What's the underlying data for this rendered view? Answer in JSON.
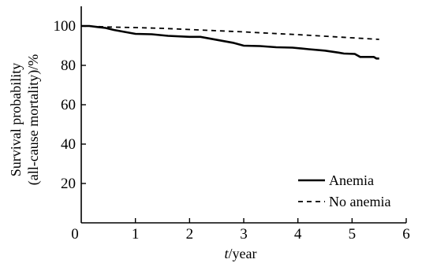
{
  "chart_data": {
    "type": "line",
    "xlabel_italic": "t",
    "xlabel_rest": "/year",
    "ylabel_line1": "Survival probability",
    "ylabel_line2": "(all-cause mortality)/%",
    "xlim": [
      0,
      6
    ],
    "ylim": [
      0,
      110
    ],
    "x_ticks": [
      0,
      1,
      2,
      3,
      4,
      5,
      6
    ],
    "x_tick_labels": [
      "0",
      "1",
      "2",
      "3",
      "4",
      "5",
      "6"
    ],
    "y_ticks": [
      20,
      40,
      60,
      80,
      100
    ],
    "y_tick_labels": [
      "20",
      "40",
      "60",
      "80",
      "100"
    ],
    "grid": false,
    "legend_position": "bottom-right",
    "series": [
      {
        "name": "Anemia",
        "style": "solid",
        "color": "#000000",
        "points": [
          [
            0,
            100
          ],
          [
            0.15,
            100
          ],
          [
            0.3,
            99.5
          ],
          [
            0.45,
            99
          ],
          [
            0.6,
            98
          ],
          [
            0.8,
            97
          ],
          [
            1.0,
            96
          ],
          [
            1.3,
            95.8
          ],
          [
            1.6,
            95
          ],
          [
            2.0,
            94.5
          ],
          [
            2.2,
            94.5
          ],
          [
            2.4,
            93.5
          ],
          [
            2.6,
            92.5
          ],
          [
            2.8,
            91.5
          ],
          [
            3.0,
            90
          ],
          [
            3.3,
            89.8
          ],
          [
            3.6,
            89.2
          ],
          [
            3.9,
            89
          ],
          [
            4.2,
            88.2
          ],
          [
            4.5,
            87.5
          ],
          [
            4.75,
            86.5
          ],
          [
            4.85,
            86
          ],
          [
            5.05,
            85.8
          ],
          [
            5.15,
            84.3
          ],
          [
            5.4,
            84.3
          ],
          [
            5.45,
            83.5
          ],
          [
            5.5,
            83.5
          ]
        ]
      },
      {
        "name": "No anemia",
        "style": "dashed",
        "color": "#000000",
        "points": [
          [
            0,
            100
          ],
          [
            0.5,
            99.5
          ],
          [
            1.0,
            99.2
          ],
          [
            1.5,
            98.8
          ],
          [
            2.0,
            98.2
          ],
          [
            2.5,
            97.6
          ],
          [
            3.0,
            97
          ],
          [
            3.5,
            96.3
          ],
          [
            4.0,
            95.6
          ],
          [
            4.5,
            94.8
          ],
          [
            5.0,
            94
          ],
          [
            5.5,
            93.2
          ]
        ]
      }
    ]
  }
}
